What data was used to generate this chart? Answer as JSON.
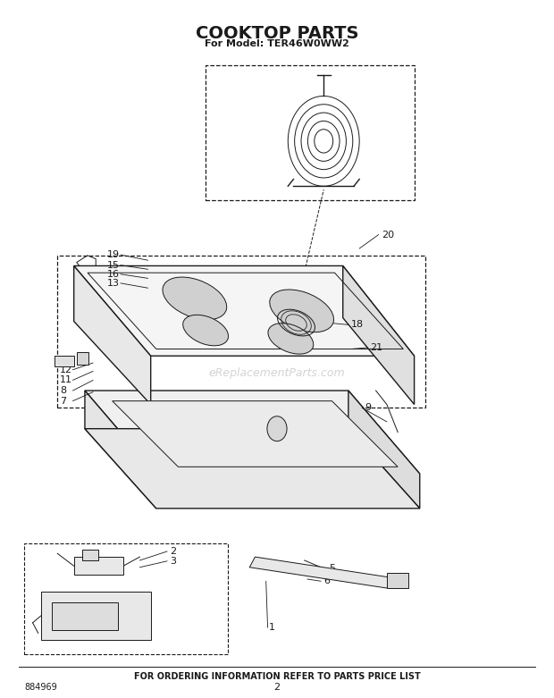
{
  "title": "COOKTOP PARTS",
  "subtitle": "For Model: TER46W0WW2",
  "footer_text": "FOR ORDERING INFORMATION REFER TO PARTS PRICE LIST",
  "part_number": "884969",
  "page_number": "2",
  "watermark": "eReplacementParts.com",
  "bg_color": "#ffffff",
  "line_color": "#1a1a1a",
  "title_fontsize": 14,
  "subtitle_fontsize": 8,
  "label_fontsize": 8,
  "footer_fontsize": 7
}
